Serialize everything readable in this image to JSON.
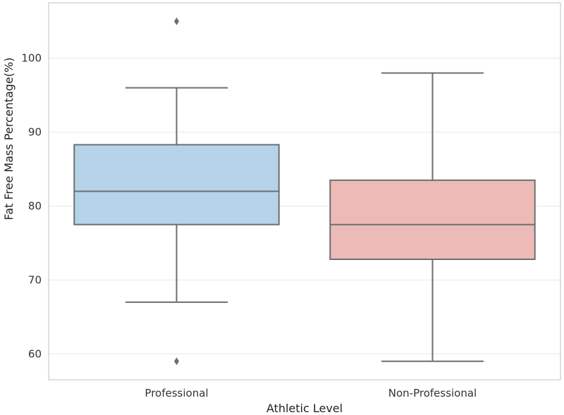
{
  "chart_data": {
    "type": "box",
    "xlabel": "Athletic Level",
    "ylabel": "Fat Free Mass  Percentage(%)",
    "ylim": [
      56.5,
      107.5
    ],
    "yticks": [
      60,
      70,
      80,
      90,
      100
    ],
    "grid": "horizontal",
    "categories": [
      "Professional",
      "Non-Professional"
    ],
    "boxes": [
      {
        "category": "Professional",
        "whisker_low": 67,
        "q1": 77.5,
        "median": 82,
        "q3": 88.3,
        "whisker_high": 96,
        "outliers": [
          105,
          59
        ],
        "color": "#b5d4ea"
      },
      {
        "category": "Non-Professional",
        "whisker_low": 59,
        "q1": 72.8,
        "median": 77.5,
        "q3": 83.5,
        "whisker_high": 98,
        "outliers": [],
        "color": "#edbbb7"
      }
    ]
  }
}
